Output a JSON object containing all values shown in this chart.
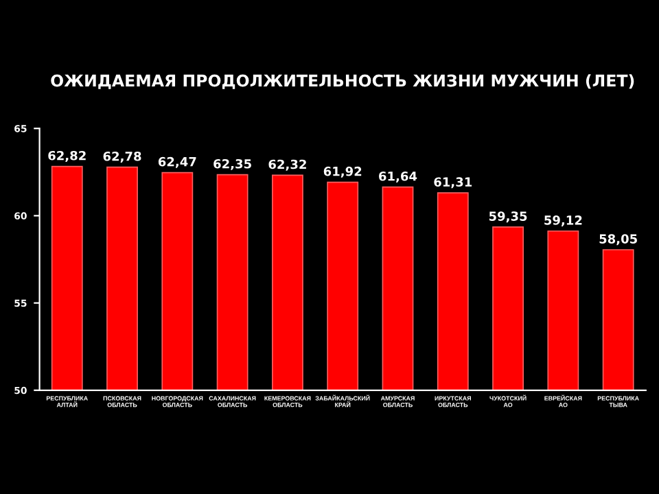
{
  "chart_data": {
    "type": "bar",
    "title": "ОЖИДАЕМАЯ ПРОДОЛЖИТЕЛЬНОСТЬ ЖИЗНИ МУЖЧИН (ЛЕТ)",
    "categories": [
      "РЕСПУБЛИКА\nАЛТАЙ",
      "ПСКОВСКАЯ\nОБЛАСТЬ",
      "НОВГОРОДСКАЯ\nОБЛАСТЬ",
      "САХАЛИНСКАЯ\nОБЛАСТЬ",
      "КЕМЕРОВСКАЯ\nОБЛАСТЬ",
      "ЗАБАЙКАЛЬСКИЙ\nКРАЙ",
      "АМУРСКАЯ\nОБЛАСТЬ",
      "ИРКУТСКАЯ\nОБЛАСТЬ",
      "ЧУКОТСКИЙ\nАО",
      "ЕВРЕЙСКАЯ\nАО",
      "РЕСПУБЛИКА\nТЫВА"
    ],
    "values": [
      62.82,
      62.78,
      62.47,
      62.35,
      62.32,
      61.92,
      61.64,
      61.31,
      59.35,
      59.12,
      58.05
    ],
    "value_labels": [
      "62,82",
      "62,78",
      "62,47",
      "62,35",
      "62,32",
      "61,92",
      "61,64",
      "61,31",
      "59,35",
      "59,12",
      "58,05"
    ],
    "color": "#ff0000",
    "ylim": [
      50,
      65
    ],
    "yticks": [
      50,
      55,
      60,
      65
    ],
    "grid": false
  }
}
